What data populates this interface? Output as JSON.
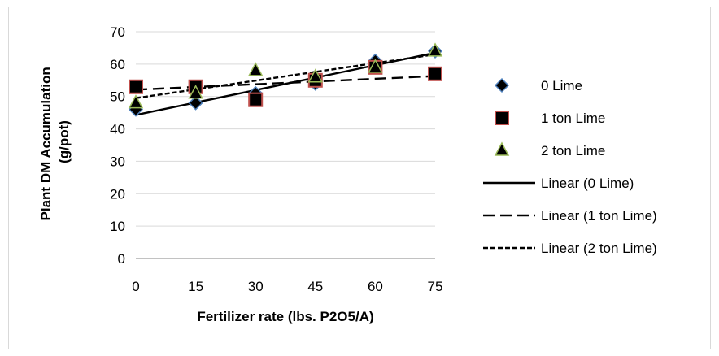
{
  "chart_data": {
    "type": "scatter",
    "xlabel": "Fertilizer rate (lbs. P2O5/A)",
    "ylabel_lines": [
      "Plant DM Accumulation",
      "(g/pot)"
    ],
    "xlim": [
      0,
      75
    ],
    "ylim": [
      0,
      70
    ],
    "xticks": [
      0,
      15,
      30,
      45,
      60,
      75
    ],
    "yticks": [
      0,
      10,
      20,
      30,
      40,
      50,
      60,
      70
    ],
    "grid": "horizontal",
    "legend_position": "right",
    "x": [
      0,
      15,
      30,
      45,
      60,
      75
    ],
    "series": [
      {
        "name": "0 Lime",
        "marker": "diamond",
        "color": "#4f81bd",
        "values": [
          46,
          48,
          51,
          54,
          61,
          64
        ]
      },
      {
        "name": "1 ton Lime",
        "marker": "square",
        "color": "#c0504d",
        "values": [
          53,
          53,
          49,
          55,
          59,
          57
        ]
      },
      {
        "name": "2 ton Lime",
        "marker": "triangle",
        "color": "#9bbb59",
        "values": [
          48,
          51,
          58,
          56,
          59,
          64
        ]
      }
    ],
    "trendlines": [
      {
        "name": "Linear (0 Lime)",
        "dash": "solid",
        "y_start": 44.3,
        "y_end": 63.5
      },
      {
        "name": "Linear (1 ton Lime)",
        "dash": "long",
        "y_start": 52.1,
        "y_end": 56.3
      },
      {
        "name": "Linear (2 ton Lime)",
        "dash": "short",
        "y_start": 49.5,
        "y_end": 63.0
      }
    ]
  }
}
